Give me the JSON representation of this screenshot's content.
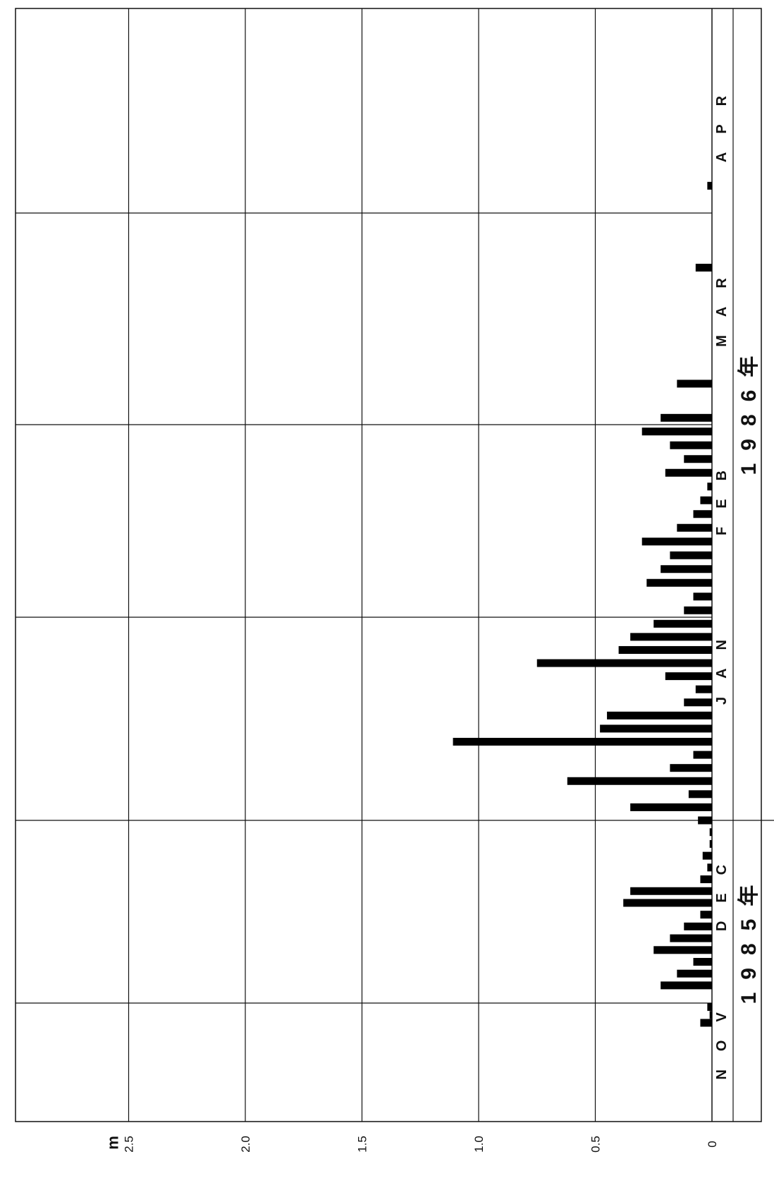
{
  "chart_data": {
    "type": "bar",
    "orientation": "rotated",
    "ylabel": "m",
    "ylim": [
      0,
      2.8
    ],
    "y_ticks": [
      "0",
      "0.5",
      "1.0",
      "1.5",
      "2.0",
      "2.5"
    ],
    "y_tick_values": [
      0,
      0.5,
      1.0,
      1.5,
      2.0,
      2.5
    ],
    "months": [
      "NOV",
      "DEC",
      "JAN",
      "FEB",
      "MAR",
      "APR"
    ],
    "year_labels": [
      {
        "text": "1985年",
        "months": [
          "NOV",
          "DEC"
        ]
      },
      {
        "text": "1986年",
        "months": [
          "FEB",
          "MAR"
        ]
      }
    ],
    "grid": true,
    "series": [
      {
        "x": [
          "11/26",
          "11/28",
          "11/30",
          "12/04",
          "12/06",
          "12/08",
          "12/10",
          "12/12",
          "12/14",
          "12/16",
          "12/18",
          "12/20",
          "12/22",
          "12/24",
          "12/26",
          "12/28",
          "12/30",
          "01/01",
          "01/03",
          "01/05",
          "01/07",
          "01/09",
          "01/11",
          "01/13",
          "01/15",
          "01/17",
          "01/19",
          "01/21",
          "01/23",
          "01/25",
          "01/27",
          "01/29",
          "01/31",
          "02/02",
          "02/04",
          "02/06",
          "02/08",
          "02/10",
          "02/12",
          "02/14",
          "02/16",
          "02/18",
          "02/20",
          "02/22",
          "02/24",
          "02/26",
          "02/28",
          "03/02",
          "03/07",
          "03/24",
          "04/05"
        ],
        "values": [
          0.05,
          0.01,
          0.02,
          0.22,
          0.15,
          0.08,
          0.25,
          0.18,
          0.12,
          0.05,
          0.38,
          0.35,
          0.05,
          0.02,
          0.04,
          0.01,
          0.01,
          0.06,
          0.35,
          0.1,
          0.62,
          0.18,
          0.08,
          1.11,
          0.48,
          0.45,
          0.12,
          0.07,
          0.2,
          0.75,
          0.4,
          0.35,
          0.25,
          0.12,
          0.08,
          0.28,
          0.22,
          0.18,
          0.3,
          0.15,
          0.08,
          0.05,
          0.02,
          0.2,
          0.12,
          0.18,
          0.3,
          0.22,
          0.15,
          0.07,
          0.02
        ]
      }
    ]
  }
}
